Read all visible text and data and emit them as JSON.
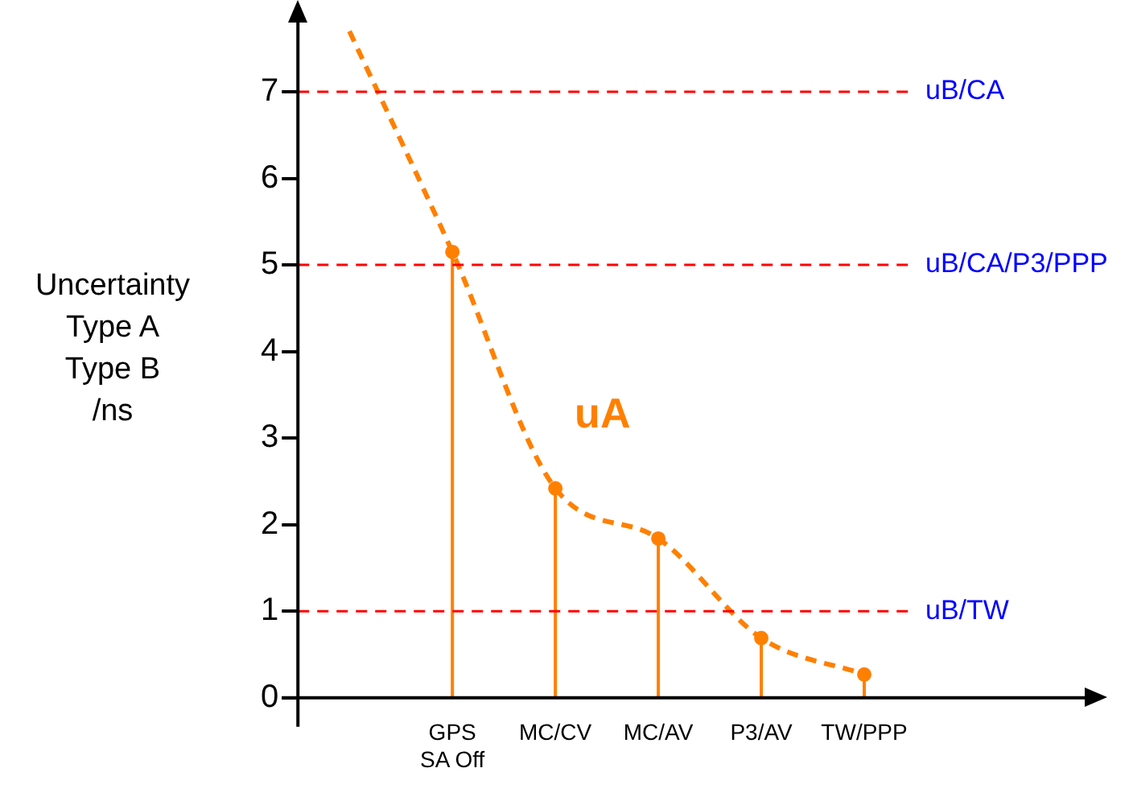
{
  "chart_data": {
    "type": "lollipop",
    "ylabel": "Uncertainty\nType A\nType B\n/ns",
    "categories": [
      null,
      "GPS\nSA Off",
      "MC/CV",
      "MC/AV",
      "P3/AV",
      "TW/PPP"
    ],
    "ylim": [
      0,
      7.8
    ],
    "yticks": [
      0,
      1,
      2,
      3,
      4,
      5,
      6,
      7
    ],
    "grid": false,
    "legend": false,
    "series": [
      {
        "color": "#ff8000",
        "marker": "circle",
        "values": [
          null,
          5.15,
          2.42,
          1.84,
          0.69,
          0.27
        ]
      },
      {
        "type": "line",
        "name": "uA",
        "color": "#ff8000",
        "marker": "none",
        "line_style": "dashed",
        "values": [
          7.7,
          5.15,
          2.42,
          1.84,
          0.69,
          0.27
        ]
      }
    ],
    "ref_lines": [
      {
        "axis": "y",
        "value": 7,
        "label": "uB/CA",
        "color": "#ff0000",
        "line_style": "dashed"
      },
      {
        "axis": "y",
        "value": 5,
        "label": "uB/CA/P3/PPP",
        "color": "#ff0000",
        "line_style": "dashed"
      },
      {
        "axis": "y",
        "value": 1,
        "label": "uB/TW",
        "color": "#ff0000",
        "line_style": "dashed"
      }
    ]
  }
}
